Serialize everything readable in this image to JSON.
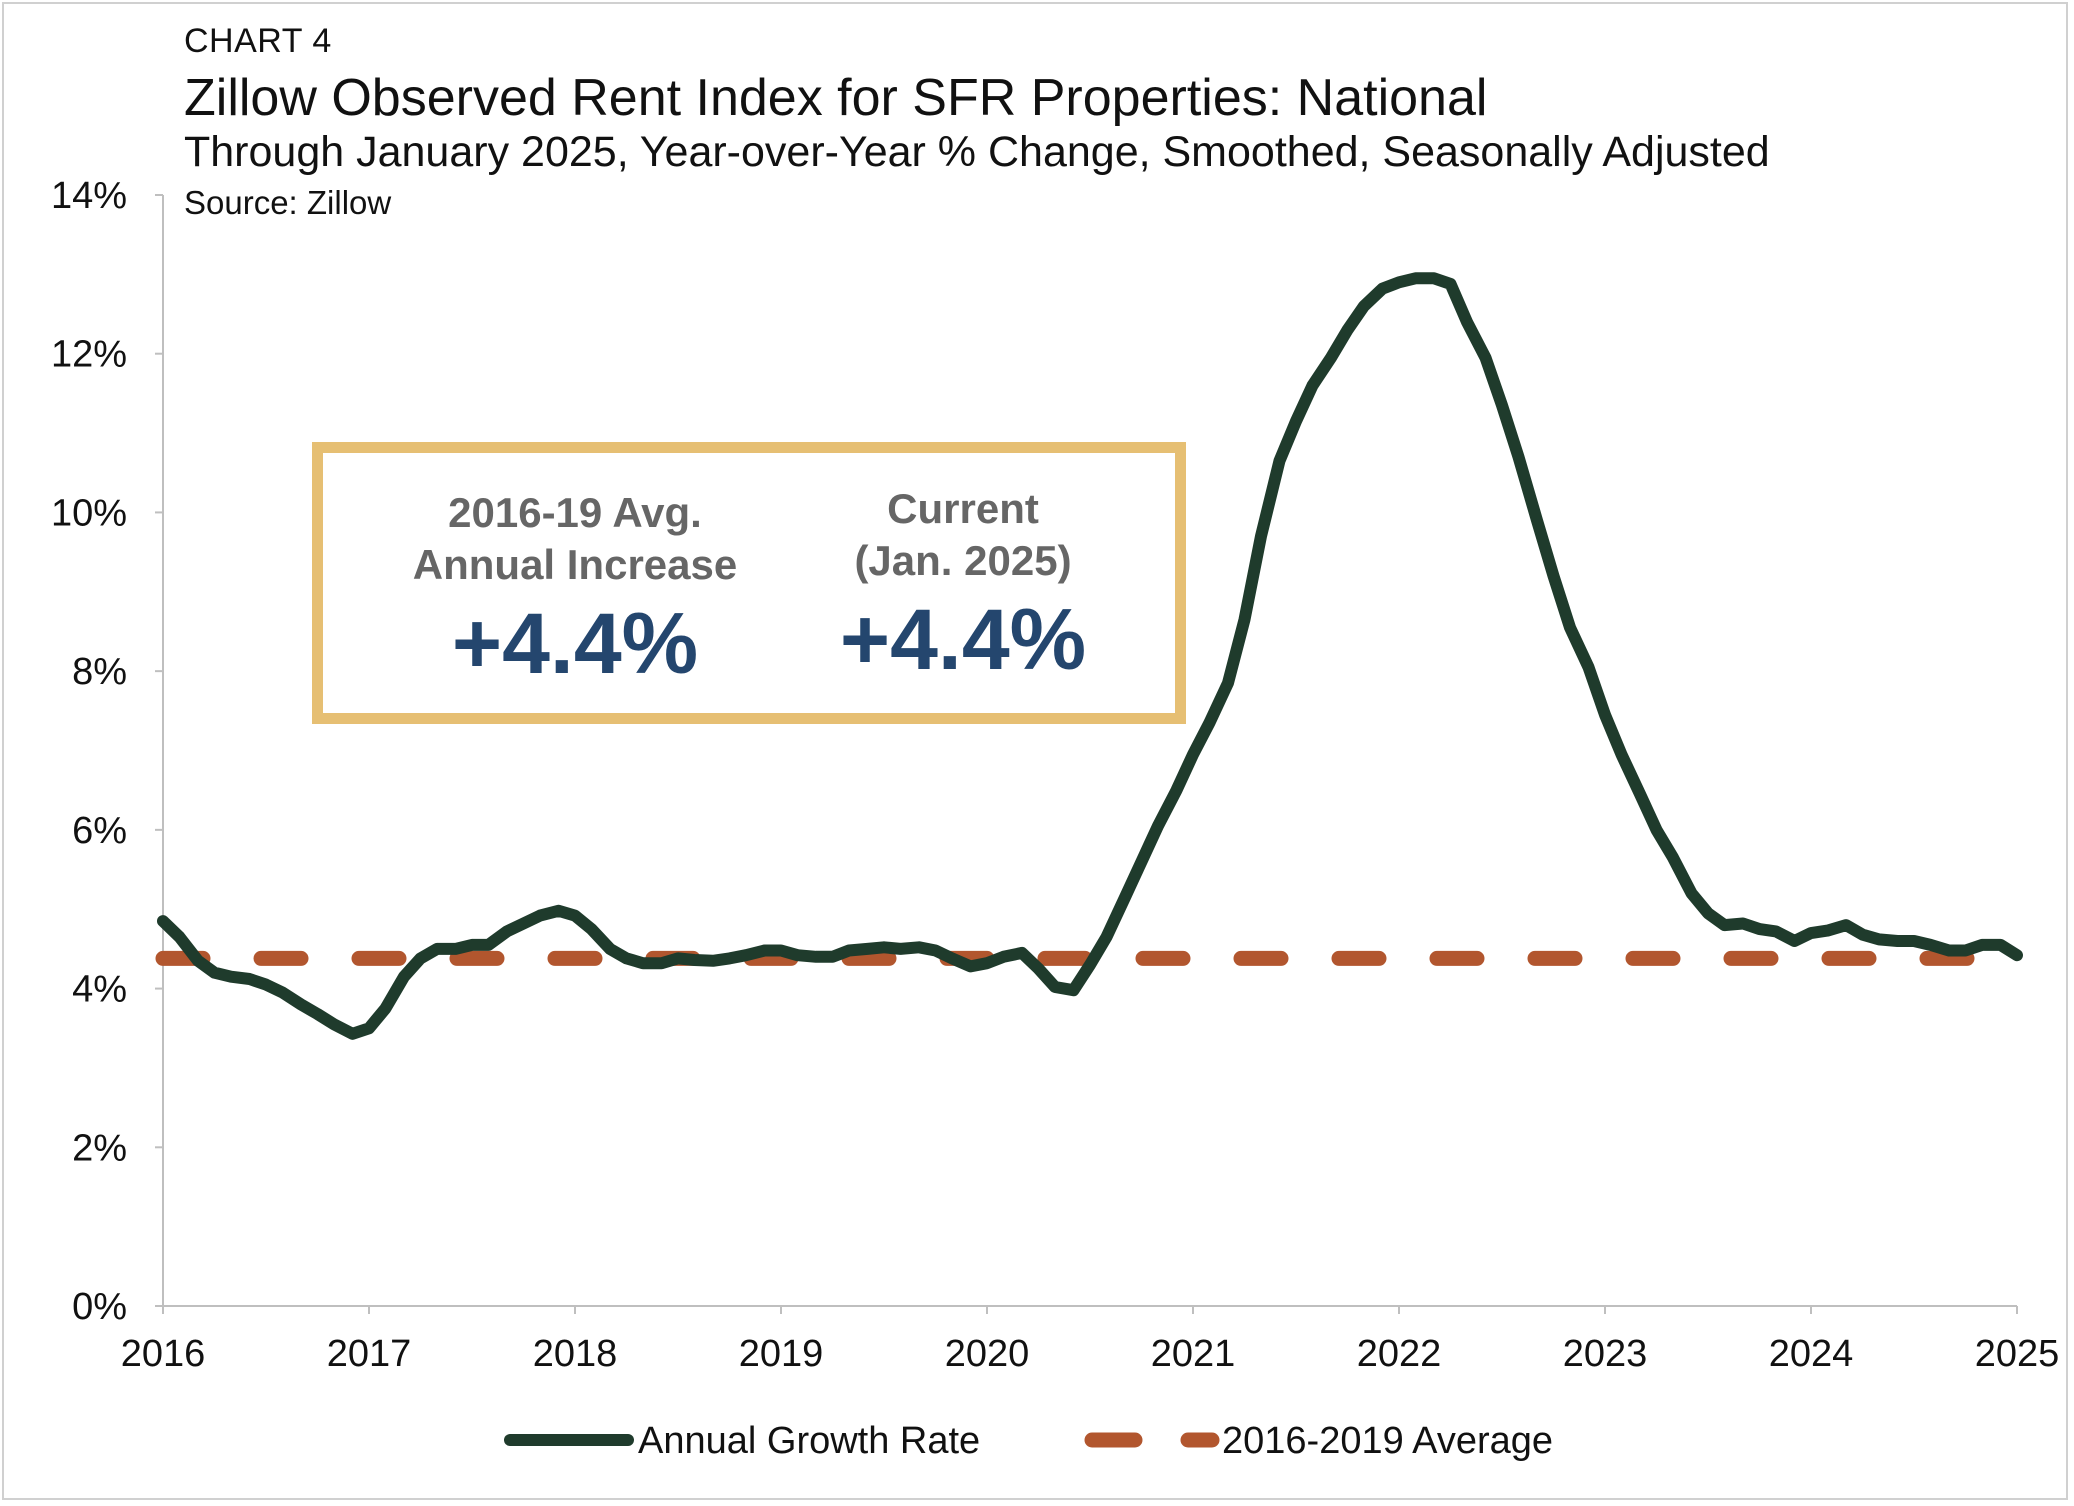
{
  "header": {
    "label": "CHART 4",
    "title": "Zillow Observed Rent Index for SFR Properties: National",
    "subtitle": "Through January 2025, Year-over-Year % Change, Smoothed, Seasonally Adjusted",
    "source": "Source: Zillow"
  },
  "callout": {
    "left": {
      "line1": "2016-19 Avg.",
      "line2": "Annual Increase",
      "value": "+4.4%"
    },
    "right": {
      "line1": "Current",
      "line2": "(Jan. 2025)",
      "value": "+4.4%"
    }
  },
  "colors": {
    "series": "#1f3b2c",
    "average": "#b2562e",
    "callout_border": "#e6bf73",
    "callout_value": "#24466e",
    "callout_label": "#666666"
  },
  "chart_data": {
    "type": "line",
    "title": "Zillow Observed Rent Index for SFR Properties: National",
    "x_ticks": [
      "2016",
      "2017",
      "2018",
      "2019",
      "2020",
      "2021",
      "2022",
      "2023",
      "2024",
      "2025"
    ],
    "y_ticks": [
      "0%",
      "2%",
      "4%",
      "6%",
      "8%",
      "10%",
      "12%",
      "14%"
    ],
    "xlim": [
      2016,
      2025
    ],
    "ylim": [
      0,
      14
    ],
    "grid": false,
    "legend_position": "bottom",
    "series": [
      {
        "name": "Annual Growth Rate",
        "style": "solid",
        "points": [
          [
            2016.0,
            4.85
          ],
          [
            2016.08,
            4.65
          ],
          [
            2016.17,
            4.35
          ],
          [
            2016.25,
            4.2
          ],
          [
            2016.33,
            4.15
          ],
          [
            2016.42,
            4.12
          ],
          [
            2016.5,
            4.05
          ],
          [
            2016.58,
            3.95
          ],
          [
            2016.67,
            3.8
          ],
          [
            2016.75,
            3.68
          ],
          [
            2016.83,
            3.55
          ],
          [
            2016.92,
            3.43
          ],
          [
            2017.0,
            3.5
          ],
          [
            2017.08,
            3.75
          ],
          [
            2017.17,
            4.15
          ],
          [
            2017.25,
            4.38
          ],
          [
            2017.33,
            4.5
          ],
          [
            2017.42,
            4.5
          ],
          [
            2017.5,
            4.55
          ],
          [
            2017.58,
            4.55
          ],
          [
            2017.67,
            4.72
          ],
          [
            2017.75,
            4.82
          ],
          [
            2017.83,
            4.92
          ],
          [
            2017.92,
            4.98
          ],
          [
            2018.0,
            4.92
          ],
          [
            2018.08,
            4.75
          ],
          [
            2018.17,
            4.5
          ],
          [
            2018.25,
            4.38
          ],
          [
            2018.33,
            4.32
          ],
          [
            2018.42,
            4.32
          ],
          [
            2018.5,
            4.38
          ],
          [
            2018.58,
            4.36
          ],
          [
            2018.67,
            4.35
          ],
          [
            2018.75,
            4.38
          ],
          [
            2018.83,
            4.42
          ],
          [
            2018.92,
            4.48
          ],
          [
            2019.0,
            4.48
          ],
          [
            2019.08,
            4.42
          ],
          [
            2019.17,
            4.4
          ],
          [
            2019.25,
            4.4
          ],
          [
            2019.33,
            4.48
          ],
          [
            2019.42,
            4.5
          ],
          [
            2019.5,
            4.52
          ],
          [
            2019.58,
            4.5
          ],
          [
            2019.67,
            4.52
          ],
          [
            2019.75,
            4.48
          ],
          [
            2019.83,
            4.38
          ],
          [
            2019.92,
            4.28
          ],
          [
            2020.0,
            4.32
          ],
          [
            2020.08,
            4.4
          ],
          [
            2020.17,
            4.45
          ],
          [
            2020.25,
            4.25
          ],
          [
            2020.33,
            4.02
          ],
          [
            2020.42,
            3.98
          ],
          [
            2020.5,
            4.3
          ],
          [
            2020.58,
            4.65
          ],
          [
            2020.67,
            5.15
          ],
          [
            2020.75,
            5.6
          ],
          [
            2020.83,
            6.05
          ],
          [
            2020.92,
            6.5
          ],
          [
            2021.0,
            6.95
          ],
          [
            2021.08,
            7.35
          ],
          [
            2021.17,
            7.85
          ],
          [
            2021.25,
            8.65
          ],
          [
            2021.33,
            9.7
          ],
          [
            2021.42,
            10.65
          ],
          [
            2021.5,
            11.15
          ],
          [
            2021.58,
            11.6
          ],
          [
            2021.67,
            11.95
          ],
          [
            2021.75,
            12.3
          ],
          [
            2021.83,
            12.6
          ],
          [
            2021.92,
            12.82
          ],
          [
            2022.0,
            12.9
          ],
          [
            2022.08,
            12.95
          ],
          [
            2022.17,
            12.95
          ],
          [
            2022.25,
            12.88
          ],
          [
            2022.33,
            12.4
          ],
          [
            2022.42,
            11.95
          ],
          [
            2022.5,
            11.35
          ],
          [
            2022.58,
            10.7
          ],
          [
            2022.67,
            9.9
          ],
          [
            2022.75,
            9.2
          ],
          [
            2022.83,
            8.55
          ],
          [
            2022.92,
            8.05
          ],
          [
            2023.0,
            7.45
          ],
          [
            2023.08,
            6.95
          ],
          [
            2023.17,
            6.45
          ],
          [
            2023.25,
            6.0
          ],
          [
            2023.33,
            5.65
          ],
          [
            2023.42,
            5.2
          ],
          [
            2023.5,
            4.95
          ],
          [
            2023.58,
            4.8
          ],
          [
            2023.67,
            4.82
          ],
          [
            2023.75,
            4.75
          ],
          [
            2023.83,
            4.72
          ],
          [
            2023.92,
            4.6
          ],
          [
            2024.0,
            4.7
          ],
          [
            2024.08,
            4.73
          ],
          [
            2024.17,
            4.8
          ],
          [
            2024.25,
            4.68
          ],
          [
            2024.33,
            4.62
          ],
          [
            2024.42,
            4.6
          ],
          [
            2024.5,
            4.6
          ],
          [
            2024.58,
            4.55
          ],
          [
            2024.67,
            4.48
          ],
          [
            2024.75,
            4.48
          ],
          [
            2024.83,
            4.55
          ],
          [
            2024.92,
            4.55
          ],
          [
            2025.0,
            4.42
          ]
        ]
      },
      {
        "name": "2016-2019 Average",
        "style": "dashed",
        "points": [
          [
            2016.0,
            4.38
          ],
          [
            2025.0,
            4.38
          ]
        ]
      }
    ]
  }
}
